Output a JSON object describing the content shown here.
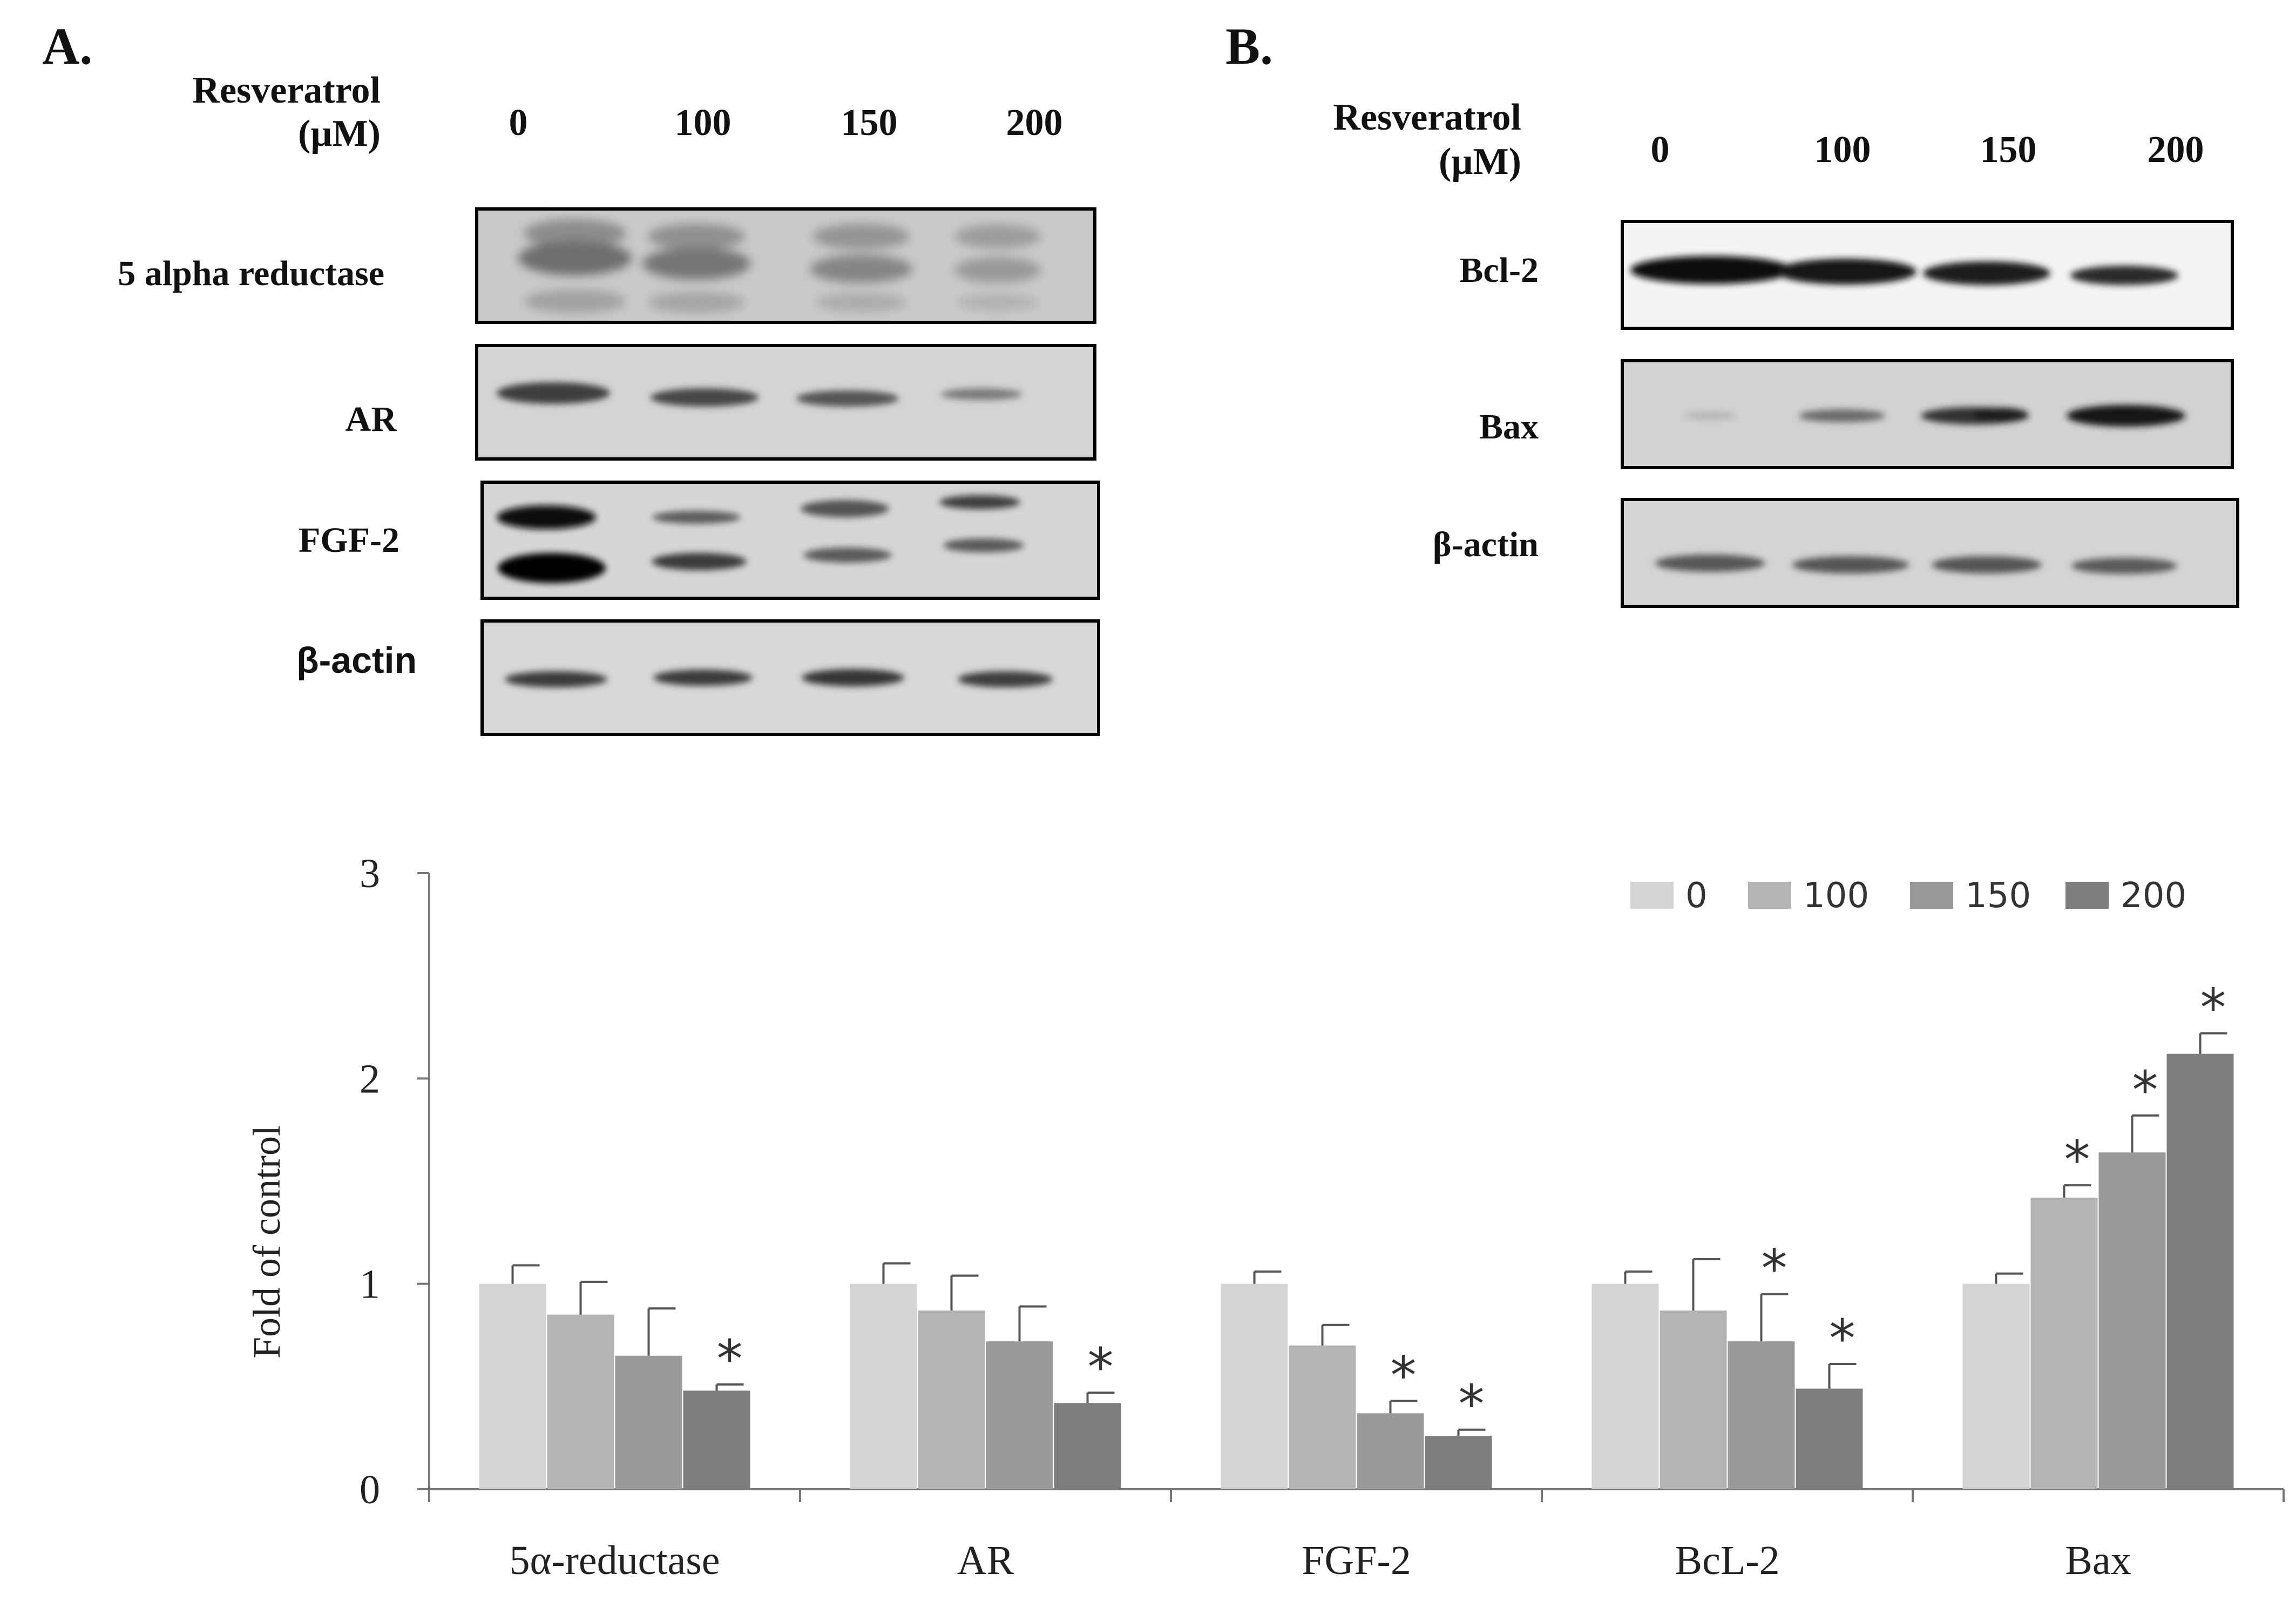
{
  "panel_a": {
    "label": "A.",
    "treatment_label": "Resveratrol",
    "unit_label": "(µM)",
    "doses": [
      "0",
      "100",
      "150",
      "200"
    ],
    "blots": [
      {
        "name": "5 alpha reductase",
        "sans": false
      },
      {
        "name": "AR",
        "sans": false
      },
      {
        "name": "FGF-2",
        "sans": false
      },
      {
        "name": "β-actin",
        "sans": true
      }
    ]
  },
  "panel_b": {
    "label": "B.",
    "treatment_label": "Resveratrol",
    "unit_label": "(µM)",
    "doses": [
      "0",
      "100",
      "150",
      "200"
    ],
    "blots": [
      {
        "name": "Bcl-2",
        "sans": false
      },
      {
        "name": "Bax",
        "sans": false
      },
      {
        "name": "β-actin",
        "sans": false
      }
    ]
  },
  "chart_data": {
    "type": "bar",
    "categories": [
      "5α-reductase",
      "AR",
      "FGF-2",
      "BcL-2",
      "Bax"
    ],
    "ylabel": "Fold of control",
    "xlabel": "",
    "ylim": [
      0,
      3
    ],
    "yticks": [
      0,
      1,
      2,
      3
    ],
    "grid": false,
    "legend": "top-right",
    "significance_marker": "*",
    "series": [
      {
        "name": "0",
        "color": "#d4d4d4",
        "values": [
          1.0,
          1.0,
          1.0,
          1.0,
          1.0
        ],
        "errors": [
          0.09,
          0.1,
          0.06,
          0.06,
          0.05
        ],
        "significant": [
          false,
          false,
          false,
          false,
          false
        ]
      },
      {
        "name": "100",
        "color": "#b4b4b4",
        "values": [
          0.85,
          0.87,
          0.7,
          0.87,
          1.42
        ],
        "errors": [
          0.16,
          0.17,
          0.1,
          0.25,
          0.06
        ],
        "significant": [
          false,
          false,
          false,
          false,
          true
        ]
      },
      {
        "name": "150",
        "color": "#9a9a9a",
        "values": [
          0.65,
          0.72,
          0.37,
          0.72,
          1.64
        ],
        "errors": [
          0.23,
          0.17,
          0.06,
          0.23,
          0.18
        ],
        "significant": [
          false,
          false,
          true,
          true,
          true
        ]
      },
      {
        "name": "200",
        "color": "#7e7e7e",
        "values": [
          0.48,
          0.42,
          0.26,
          0.49,
          2.12
        ],
        "errors": [
          0.03,
          0.05,
          0.03,
          0.12,
          0.1
        ],
        "significant": [
          true,
          true,
          true,
          true,
          true
        ]
      }
    ]
  }
}
